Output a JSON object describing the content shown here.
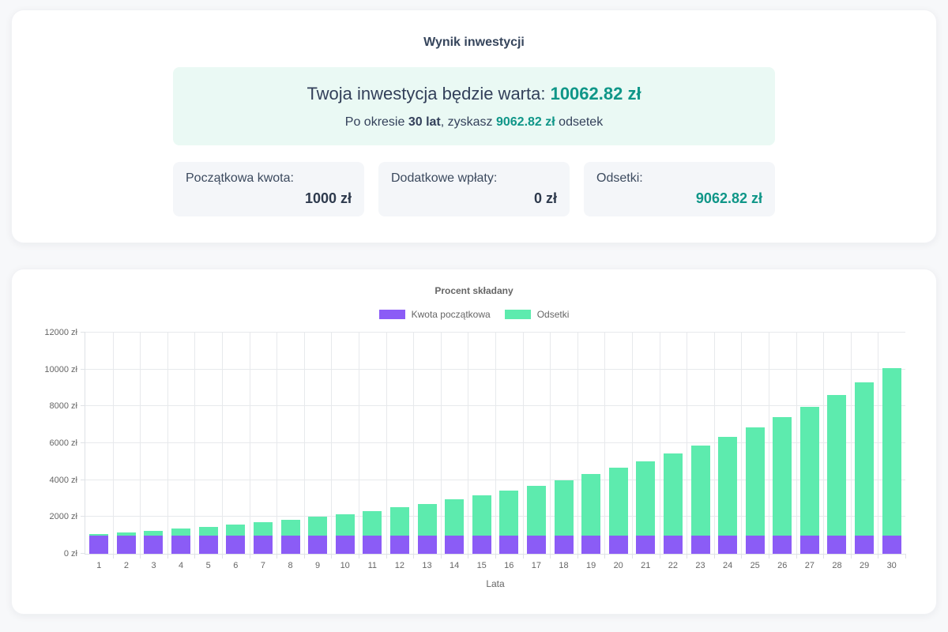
{
  "colors": {
    "accent_teal": "#0f9688",
    "bar_initial_purple": "#8b5cf6",
    "bar_interest_green": "#5debae",
    "highlight_box_bg": "#eaf9f4",
    "stat_box_bg": "#f4f6f9",
    "heading_dark": "#36455c",
    "chart_text_gray": "#666666"
  },
  "result_card": {
    "title": "Wynik inwestycji",
    "highlight_box": {
      "line1_prefix": "Twoja inwestycja będzie warta: ",
      "line1_value": "10062.82 zł",
      "line2_part1": "Po okresie ",
      "line2_bold": "30 lat",
      "line2_part2": ", zyskasz ",
      "line2_value": "9062.82 zł",
      "line2_part3": " odsetek"
    },
    "stats": [
      {
        "label": "Początkowa kwota:",
        "value": "1000 zł"
      },
      {
        "label": "Dodatkowe wpłaty:",
        "value": "0 zł"
      },
      {
        "label": "Odsetki:",
        "value": "9062.82 zł"
      }
    ]
  },
  "chart_data": {
    "type": "bar",
    "stacked": true,
    "title": "Procent składany",
    "xlabel": "Lata",
    "ylabel": "",
    "legend_position": "top",
    "grid": true,
    "ylim": [
      0,
      12000
    ],
    "y_ticks": [
      0,
      2000,
      4000,
      6000,
      8000,
      10000,
      12000
    ],
    "y_tick_suffix": " zł",
    "categories": [
      "1",
      "2",
      "3",
      "4",
      "5",
      "6",
      "7",
      "8",
      "9",
      "10",
      "11",
      "12",
      "13",
      "14",
      "15",
      "16",
      "17",
      "18",
      "19",
      "20",
      "21",
      "22",
      "23",
      "24",
      "25",
      "26",
      "27",
      "28",
      "29",
      "30"
    ],
    "series": [
      {
        "name": "Kwota początkowa",
        "color": "#8b5cf6",
        "values": [
          1000,
          1000,
          1000,
          1000,
          1000,
          1000,
          1000,
          1000,
          1000,
          1000,
          1000,
          1000,
          1000,
          1000,
          1000,
          1000,
          1000,
          1000,
          1000,
          1000,
          1000,
          1000,
          1000,
          1000,
          1000,
          1000,
          1000,
          1000,
          1000,
          1000
        ]
      },
      {
        "name": "Odsetki",
        "color": "#5debae",
        "values": [
          80.0,
          166.4,
          259.71,
          360.49,
          469.33,
          586.87,
          713.82,
          850.93,
          999.0,
          1158.92,
          1331.64,
          1518.17,
          1719.62,
          1937.19,
          2172.17,
          2425.94,
          2700.02,
          2996.02,
          3315.7,
          3660.96,
          4033.83,
          4436.54,
          4871.46,
          5341.18,
          5848.48,
          6396.35,
          6988.06,
          7627.11,
          8317.27,
          9062.82
        ]
      }
    ]
  }
}
